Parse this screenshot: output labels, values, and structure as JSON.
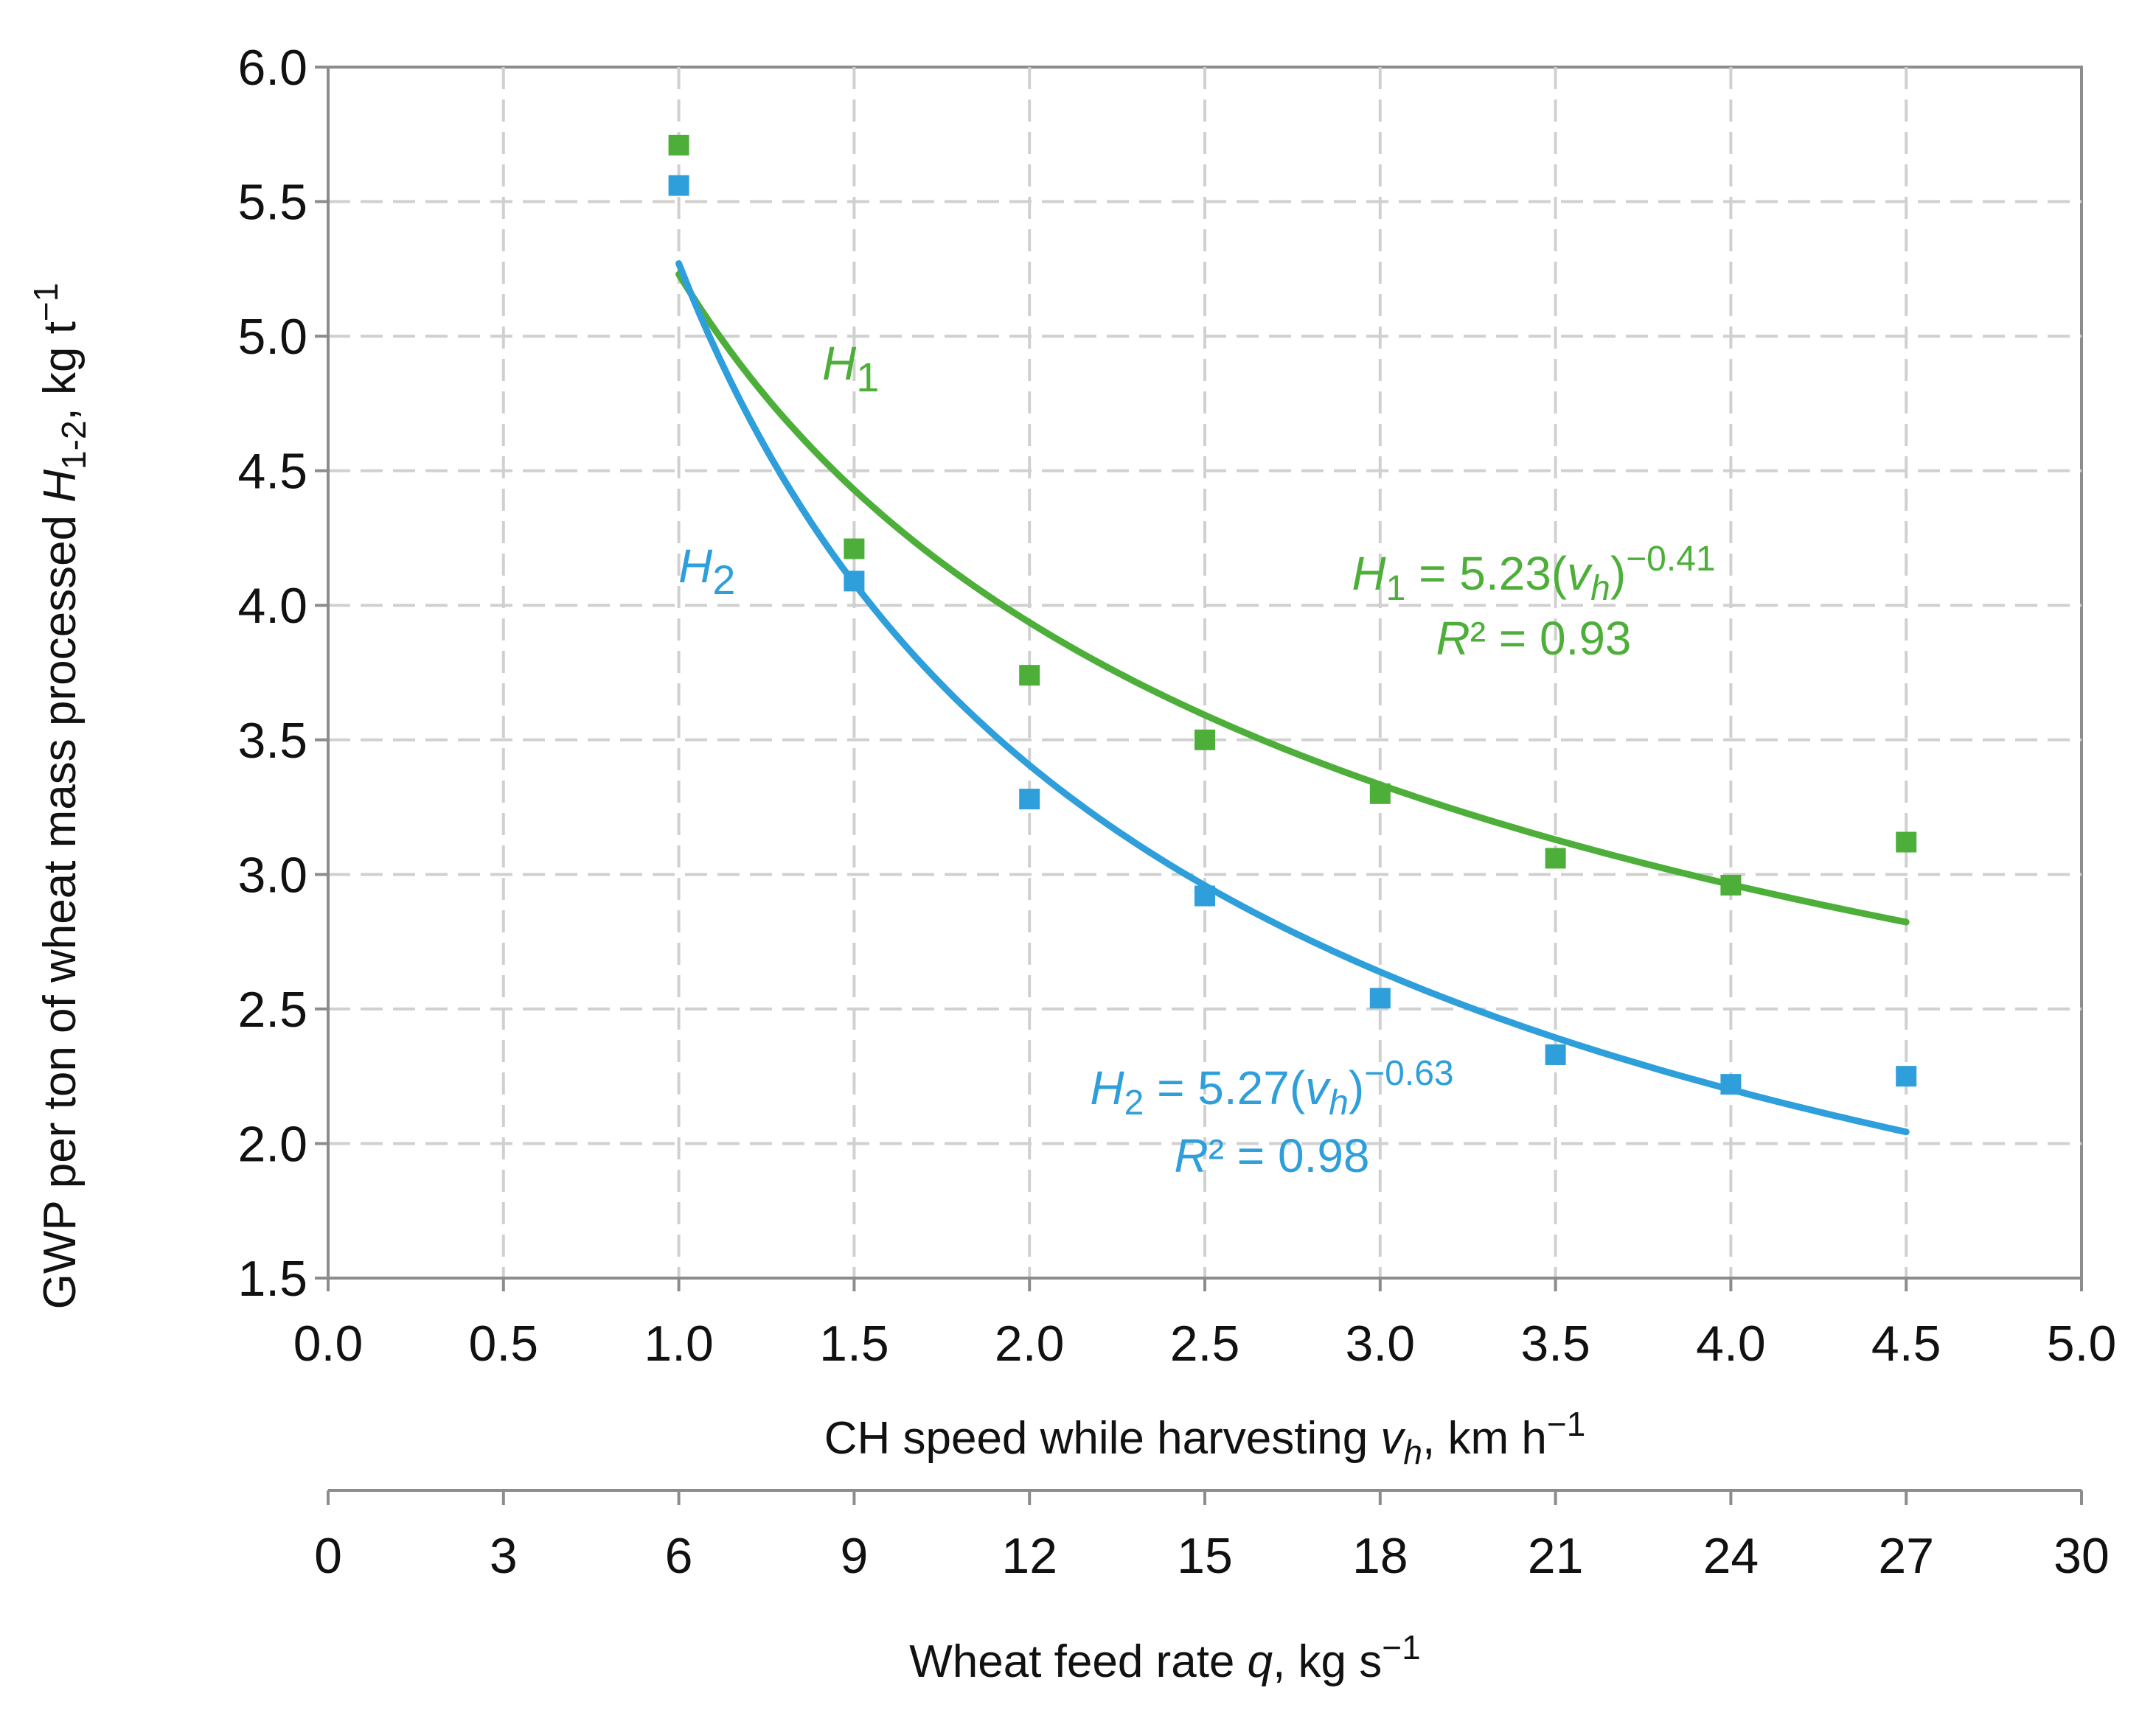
{
  "chart_data": {
    "type": "scatter",
    "xlabel": {
      "prefix": "CH speed while harvesting ",
      "var": "v",
      "sub": "h",
      "suffix": ", km h",
      "sup": "−1"
    },
    "x2label": {
      "prefix": "Wheat feed rate ",
      "var": "q",
      "suffix": ", kg s",
      "sup": "−1"
    },
    "ylabel": {
      "prefix": "GWP per ton of wheat mass processed ",
      "var": "H",
      "sub": "1-2",
      "suffix": ",  kg t",
      "sup": "−1"
    },
    "xlim": [
      0.0,
      5.0
    ],
    "ylim": [
      1.5,
      6.0
    ],
    "x2lim": [
      0,
      30
    ],
    "x_ticks": [
      "0.0",
      "0.5",
      "1.0",
      "1.5",
      "2.0",
      "2.5",
      "3.0",
      "3.5",
      "4.0",
      "4.5",
      "5.0"
    ],
    "x2_ticks": [
      "0",
      "3",
      "6",
      "9",
      "12",
      "15",
      "18",
      "21",
      "24",
      "27",
      "30"
    ],
    "y_ticks": [
      "1.5",
      "2.0",
      "2.5",
      "3.0",
      "3.5",
      "4.0",
      "4.5",
      "5.0",
      "5.5",
      "6.0"
    ],
    "grid": true,
    "series": [
      {
        "name": "H1",
        "color": "#4DAF3A",
        "x": [
          1.0,
          1.5,
          2.0,
          2.5,
          3.0,
          3.5,
          4.0,
          4.5
        ],
        "y": [
          5.71,
          4.21,
          3.74,
          3.5,
          3.3,
          3.06,
          2.96,
          3.12
        ],
        "fit": {
          "a": 5.23,
          "b": -0.41,
          "x_range": [
            1.0,
            4.5
          ]
        },
        "label": {
          "var": "H",
          "sub": "1"
        },
        "equation": {
          "lhs_var": "H",
          "lhs_sub": "1",
          "mid": " = 5.23(",
          "arg_var": "v",
          "arg_sub": "h",
          "close": ")",
          "exp": "−0.41"
        },
        "r2": {
          "var": "R",
          "text": "² = 0.93"
        }
      },
      {
        "name": "H2",
        "color": "#2E9FDB",
        "x": [
          1.0,
          1.5,
          2.0,
          2.5,
          3.0,
          3.5,
          4.0,
          4.5
        ],
        "y": [
          5.56,
          4.09,
          3.28,
          2.92,
          2.54,
          2.33,
          2.22,
          2.25
        ],
        "fit": {
          "a": 5.27,
          "b": -0.63,
          "x_range": [
            1.0,
            4.5
          ]
        },
        "label": {
          "var": "H",
          "sub": "2"
        },
        "equation": {
          "lhs_var": "H",
          "lhs_sub": "2",
          "mid": " = 5.27(",
          "arg_var": "v",
          "arg_sub": "h",
          "close": ")",
          "exp": "−0.63"
        },
        "r2": {
          "var": "R",
          "text": "² = 0.98"
        }
      }
    ]
  }
}
